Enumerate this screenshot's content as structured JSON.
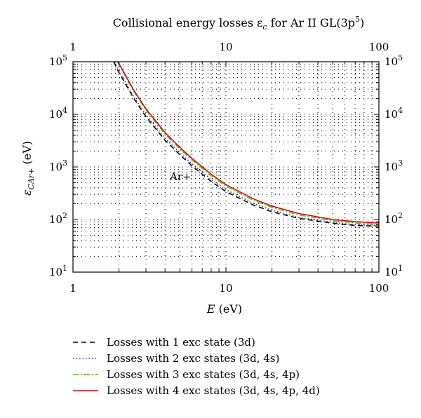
{
  "chart_data": {
    "type": "line",
    "title": "Collisional energy losses ε",
    "title_sub": "c",
    "title_rest": " for Ar II GL(3p",
    "title_sup": "5",
    "title_end": ")",
    "xlabel_symbol": "E",
    "xlabel_unit": " (eV)",
    "ylabel_symbol": "ε",
    "ylabel_sub": "CAr+",
    "ylabel_unit": " (eV)",
    "x_scale": "log",
    "y_scale": "log",
    "xlim": [
      1,
      100
    ],
    "ylim": [
      10,
      100000
    ],
    "grid": "dotted",
    "x_ticks": [
      {
        "value": 1,
        "label": "1"
      },
      {
        "value": 10,
        "label": "10"
      },
      {
        "value": 100,
        "label": "100"
      }
    ],
    "y_ticks": [
      {
        "value": 10,
        "base": "10",
        "exp": "1"
      },
      {
        "value": 100,
        "base": "10",
        "exp": "2"
      },
      {
        "value": 1000,
        "base": "10",
        "exp": "3"
      },
      {
        "value": 10000,
        "base": "10",
        "exp": "4"
      },
      {
        "value": 100000,
        "base": "10",
        "exp": "5"
      }
    ],
    "annotation": {
      "text": "Ar+",
      "x": 4.3,
      "y": 560
    },
    "series": [
      {
        "name": "Losses with 1 exc state (3d)",
        "color": "#000000",
        "dash": "7,5",
        "x": [
          1.85,
          2,
          2.5,
          3,
          4,
          5,
          6,
          8,
          10,
          15,
          20,
          30,
          50,
          70,
          100
        ],
        "y": [
          100000,
          62000,
          20000,
          9000,
          3200,
          1700,
          1050,
          530,
          340,
          190,
          140,
          105,
          85,
          77,
          75
        ]
      },
      {
        "name": "Losses with 2 exc states (3d, 4s)",
        "color": "#3333cc",
        "dash": "1.5,3",
        "x": [
          1.88,
          2,
          2.5,
          3,
          4,
          5,
          6,
          8,
          10,
          15,
          20,
          30,
          50,
          70,
          100
        ],
        "y": [
          100000,
          68000,
          21500,
          9800,
          3500,
          1850,
          1150,
          580,
          370,
          205,
          150,
          110,
          88,
          80,
          77
        ]
      },
      {
        "name": "Losses with 3 exc states (3d, 4s, 4p)",
        "color": "#44cc00",
        "dash": "8,3,2,3",
        "x": [
          1.95,
          2,
          2.5,
          3,
          4,
          5,
          6,
          8,
          10,
          15,
          20,
          30,
          50,
          70,
          100
        ],
        "y": [
          100000,
          88000,
          27000,
          12000,
          4200,
          2200,
          1350,
          680,
          430,
          235,
          170,
          122,
          95,
          86,
          81
        ]
      },
      {
        "name": "Losses with 4 exc states (3d, 4s, 4p, 4d)",
        "color": "#e8000b",
        "dash": "",
        "x": [
          1.97,
          2,
          2.5,
          3,
          4,
          5,
          6,
          8,
          10,
          15,
          20,
          30,
          50,
          70,
          100
        ],
        "y": [
          100000,
          92000,
          28500,
          12700,
          4500,
          2350,
          1450,
          730,
          460,
          250,
          180,
          130,
          100,
          91,
          86
        ]
      }
    ]
  }
}
